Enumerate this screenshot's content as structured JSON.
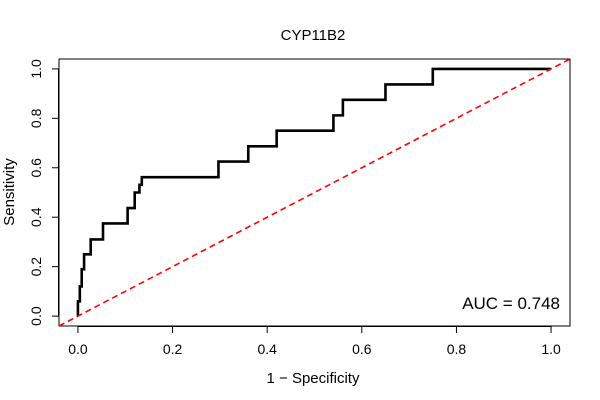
{
  "chart_data": {
    "type": "line",
    "title": "CYP11B2",
    "xlabel": "1 − Specificity",
    "ylabel": "Sensitivity",
    "xlim": [
      -0.04,
      1.04
    ],
    "ylim": [
      -0.04,
      1.04
    ],
    "xticks": [
      0.0,
      0.2,
      0.4,
      0.6,
      0.8,
      1.0
    ],
    "yticks": [
      0.0,
      0.2,
      0.4,
      0.6,
      0.8,
      1.0
    ],
    "xtick_labels": [
      "0.0",
      "0.2",
      "0.4",
      "0.6",
      "0.8",
      "1.0"
    ],
    "ytick_labels": [
      "0.0",
      "0.2",
      "0.4",
      "0.6",
      "0.8",
      "1.0"
    ],
    "grid": false,
    "annotation": "AUC = 0.748",
    "series": [
      {
        "color": "#000000",
        "style": "solid",
        "x": [
          0.0,
          0.0,
          0.004,
          0.004,
          0.008,
          0.008,
          0.013,
          0.013,
          0.027,
          0.027,
          0.053,
          0.053,
          0.105,
          0.105,
          0.12,
          0.12,
          0.13,
          0.13,
          0.135,
          0.135,
          0.297,
          0.297,
          0.36,
          0.36,
          0.42,
          0.42,
          0.54,
          0.54,
          0.56,
          0.56,
          0.65,
          0.65,
          0.75,
          0.75,
          1.0
        ],
        "y": [
          0.0,
          0.06,
          0.06,
          0.12,
          0.12,
          0.19,
          0.19,
          0.25,
          0.25,
          0.31,
          0.31,
          0.375,
          0.375,
          0.437,
          0.437,
          0.5,
          0.5,
          0.531,
          0.531,
          0.562,
          0.562,
          0.625,
          0.625,
          0.687,
          0.687,
          0.75,
          0.75,
          0.812,
          0.812,
          0.875,
          0.875,
          0.937,
          0.937,
          1.0,
          1.0
        ]
      },
      {
        "color": "#ff0000",
        "style": "dashed",
        "x": [
          -0.04,
          1.04
        ],
        "y": [
          -0.04,
          1.04
        ]
      }
    ]
  }
}
